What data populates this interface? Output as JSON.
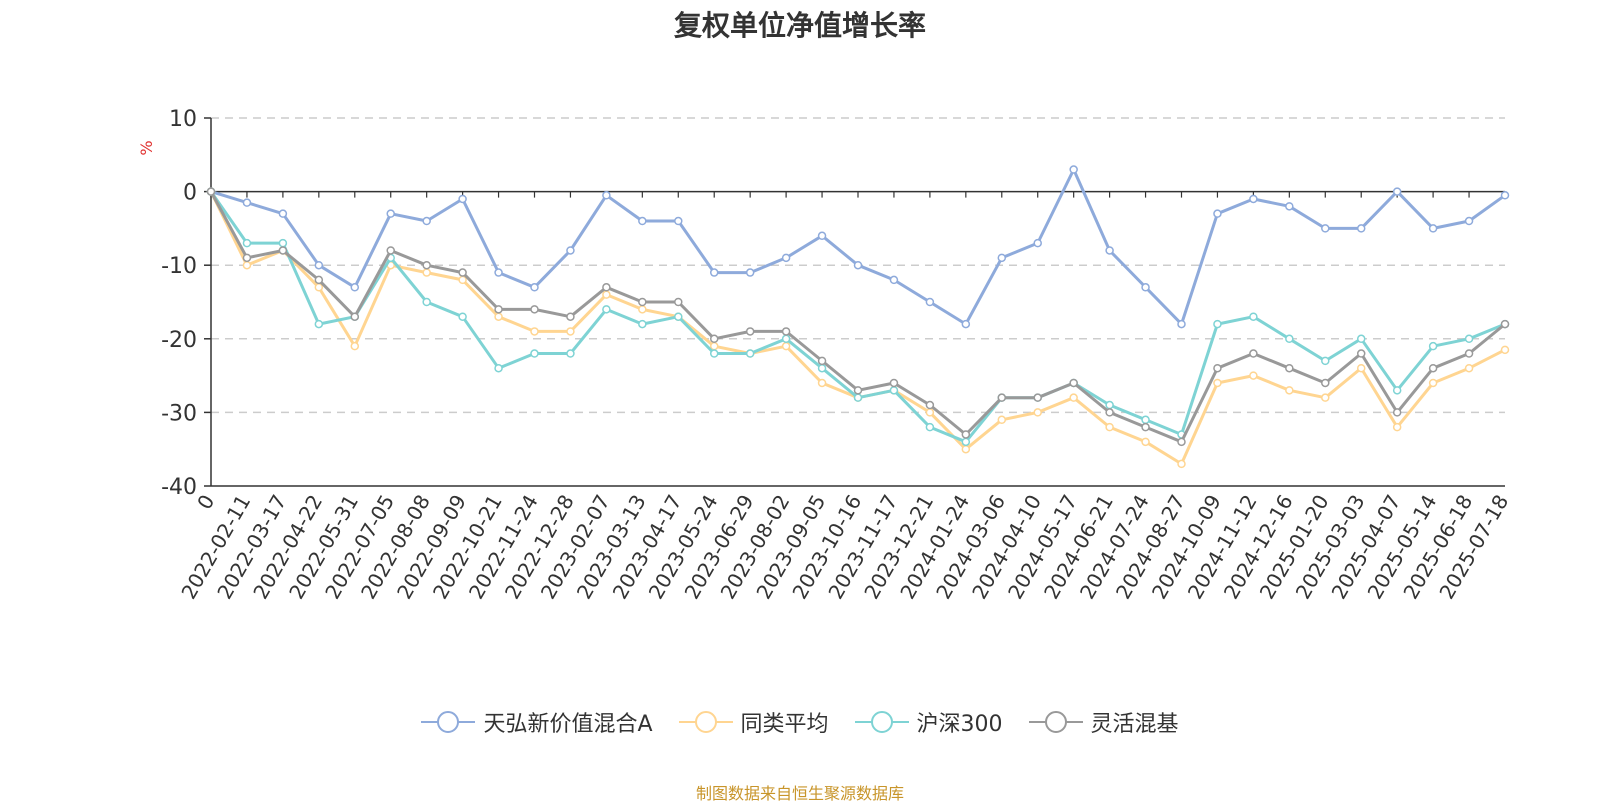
{
  "chart_data": {
    "type": "line",
    "title": "复权单位净值增长率",
    "ylabel": "%",
    "xlabel": "",
    "ylim": [
      -40,
      10
    ],
    "yticks": [
      10,
      0,
      -10,
      -20,
      -30,
      -40
    ],
    "grid": true,
    "legend_position": "bottom-center",
    "x": [
      "0",
      "2022-02-11",
      "2022-03-17",
      "2022-04-22",
      "2022-05-31",
      "2022-07-05",
      "2022-08-08",
      "2022-09-09",
      "2022-10-21",
      "2022-11-24",
      "2022-12-28",
      "2023-02-07",
      "2023-03-13",
      "2023-04-17",
      "2023-05-24",
      "2023-06-29",
      "2023-08-02",
      "2023-09-05",
      "2023-10-16",
      "2023-11-17",
      "2023-12-21",
      "2024-01-24",
      "2024-03-06",
      "2024-04-10",
      "2024-05-17",
      "2024-06-21",
      "2024-07-24",
      "2024-08-27",
      "2024-10-09",
      "2024-11-12",
      "2024-12-16",
      "2025-01-20",
      "2025-03-03",
      "2025-04-07",
      "2025-05-14",
      "2025-06-18",
      "2025-07-18"
    ],
    "series": [
      {
        "name": "天弘新价值混合A",
        "color": "#8eaadb",
        "values": [
          0,
          -1.5,
          -3,
          -10,
          -13,
          -3,
          -4,
          -1,
          -11,
          -13,
          -8,
          -0.5,
          -4,
          -4,
          -11,
          -11,
          -9,
          -6,
          -10,
          -12,
          -15,
          -18,
          -9,
          -7,
          3,
          -8,
          -13,
          -18,
          -3,
          -1,
          -2,
          -5,
          -5,
          0,
          -5,
          -4,
          -0.5
        ]
      },
      {
        "name": "同类平均",
        "color": "#ffd591",
        "values": [
          0,
          -10,
          -8,
          -13,
          -21,
          -10,
          -11,
          -12,
          -17,
          -19,
          -19,
          -14,
          -16,
          -17,
          -21,
          -22,
          -21,
          -26,
          -28,
          -27,
          -30,
          -35,
          -31,
          -30,
          -28,
          -32,
          -34,
          -37,
          -26,
          -25,
          -27,
          -28,
          -24,
          -32,
          -26,
          -24,
          -21.5
        ]
      },
      {
        "name": "沪深300",
        "color": "#7ed3d4",
        "values": [
          0,
          -7,
          -7,
          -18,
          -17,
          -9,
          -15,
          -17,
          -24,
          -22,
          -22,
          -16,
          -18,
          -17,
          -22,
          -22,
          -20,
          -24,
          -28,
          -27,
          -32,
          -34,
          -28,
          -28,
          -26,
          -29,
          -31,
          -33,
          -18,
          -17,
          -20,
          -23,
          -20,
          -27,
          -21,
          -20,
          -18
        ]
      },
      {
        "name": "灵活混基",
        "color": "#999999",
        "values": [
          0,
          -9,
          -8,
          -12,
          -17,
          -8,
          -10,
          -11,
          -16,
          -16,
          -17,
          -13,
          -15,
          -15,
          -20,
          -19,
          -19,
          -23,
          -27,
          -26,
          -29,
          -33,
          -28,
          -28,
          -26,
          -30,
          -32,
          -34,
          -24,
          -22,
          -24,
          -26,
          -22,
          -30,
          -24,
          -22,
          -18
        ]
      }
    ]
  },
  "source_note": "制图数据来自恒生聚源数据库"
}
